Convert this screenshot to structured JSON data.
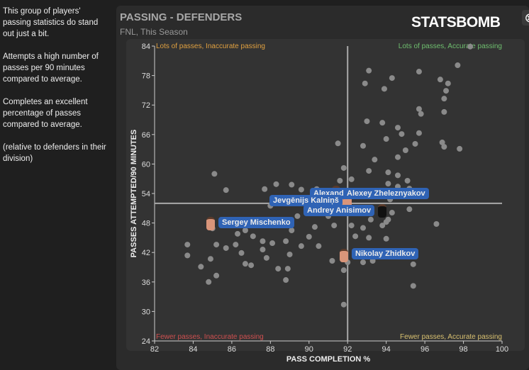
{
  "sidebar": {
    "paragraphs": [
      "This group of players' passing statistics do stand out just a bit.",
      "Attempts a high number of passes per 90 minutes compared to average.",
      "Completes an excellent percentage of passes compared to average.",
      "(relative to defenders in their division)"
    ]
  },
  "header": {
    "title": "PASSING - DEFENDERS",
    "subtitle": "FNL, This Season",
    "logo": "STATSBOMB",
    "close_icon": "close-icon"
  },
  "chart_data": {
    "type": "scatter",
    "xlabel": "PASS COMPLETION %",
    "ylabel": "PASSES ATTEMPTED/90 MINUTES",
    "xlim": [
      82,
      100
    ],
    "ylim": [
      24,
      84
    ],
    "xticks": [
      82,
      84,
      86,
      88,
      90,
      92,
      94,
      96,
      98,
      100
    ],
    "yticks": [
      24,
      30,
      36,
      42,
      48,
      54,
      60,
      66,
      72,
      78,
      84
    ],
    "x_avg": 92,
    "y_avg": 52,
    "quadrants": {
      "tl": "Lots of passes, Inaccurate passing",
      "tr": "Lots of passes, Accurate passing",
      "bl": "Fewer passes, Inaccurate passing",
      "br": "Fewer passes, Accurate passing"
    },
    "colors": {
      "tl": "#e0a040",
      "tr": "#6fbf6f",
      "bl": "#d05050",
      "br": "#d8c070",
      "point": "#8a8a8a",
      "label": "#2f63b5"
    },
    "points": [
      [
        98.35,
        83.9
      ],
      [
        97.7,
        80.1
      ],
      [
        93.1,
        79
      ],
      [
        95.7,
        78.8
      ],
      [
        96.8,
        77.2
      ],
      [
        97.2,
        76.4
      ],
      [
        94.3,
        77.5
      ],
      [
        92.9,
        76.4
      ],
      [
        93.9,
        75.3
      ],
      [
        97.1,
        74.9
      ],
      [
        97.0,
        73.3
      ],
      [
        95.7,
        71.2
      ],
      [
        97.0,
        70.6
      ],
      [
        95.8,
        70.2
      ],
      [
        93.0,
        68.7
      ],
      [
        93.8,
        68.4
      ],
      [
        94.6,
        67.4
      ],
      [
        94.8,
        66.1
      ],
      [
        95.7,
        66.3
      ],
      [
        94.0,
        65.1
      ],
      [
        91.5,
        64.2
      ],
      [
        92.8,
        63.7
      ],
      [
        96.9,
        64.4
      ],
      [
        97.0,
        63.5
      ],
      [
        95.5,
        64.1
      ],
      [
        97.8,
        63.1
      ],
      [
        95.0,
        62.8
      ],
      [
        93.4,
        60.9
      ],
      [
        94.6,
        61.4
      ],
      [
        91.8,
        59.2
      ],
      [
        93.1,
        58.6
      ],
      [
        94.1,
        58.3
      ],
      [
        94.6,
        57.7
      ],
      [
        85.1,
        58
      ],
      [
        85.7,
        54.7
      ],
      [
        87.7,
        54.9
      ],
      [
        88.3,
        55.9
      ],
      [
        89.1,
        55.8
      ],
      [
        91.6,
        56.6
      ],
      [
        92.2,
        56.9
      ],
      [
        90.4,
        54.9
      ],
      [
        89.6,
        54.8
      ],
      [
        95.1,
        56.6
      ],
      [
        95.2,
        55
      ],
      [
        94.1,
        56
      ],
      [
        94.6,
        55.4
      ],
      [
        94.2,
        52.8
      ],
      [
        95.2,
        50.8
      ],
      [
        94.3,
        50.1
      ],
      [
        94.1,
        48.7
      ],
      [
        93.8,
        47.5
      ],
      [
        94.0,
        48.2
      ],
      [
        93.2,
        48.7
      ],
      [
        92.8,
        47
      ],
      [
        92.2,
        47.5
      ],
      [
        92.4,
        45.3
      ],
      [
        93.1,
        45
      ],
      [
        94.0,
        44.8
      ],
      [
        92.0,
        40
      ],
      [
        92.8,
        40
      ],
      [
        93.3,
        40.3
      ],
      [
        95.4,
        39.6
      ],
      [
        95.4,
        35.2
      ],
      [
        96.6,
        47.8
      ],
      [
        91.8,
        31.4
      ],
      [
        91.8,
        38.4
      ],
      [
        91.2,
        40.3
      ],
      [
        90.5,
        43.3
      ],
      [
        90,
        45.2
      ],
      [
        90.3,
        47.2
      ],
      [
        91.3,
        47.5
      ],
      [
        91,
        49.4
      ],
      [
        89.4,
        49.4
      ],
      [
        89.1,
        46.5
      ],
      [
        88.8,
        44.3
      ],
      [
        88.1,
        43.9
      ],
      [
        87.6,
        44.3
      ],
      [
        87.1,
        45.3
      ],
      [
        86.7,
        46.5
      ],
      [
        86.3,
        45.8
      ],
      [
        86.2,
        43.6
      ],
      [
        85.7,
        42.9
      ],
      [
        85.2,
        43.6
      ],
      [
        85,
        46.9
      ],
      [
        84.9,
        40.7
      ],
      [
        86.7,
        39.7
      ],
      [
        87,
        39.4
      ],
      [
        86.5,
        41.9
      ],
      [
        87.6,
        42.6
      ],
      [
        87.8,
        40.9
      ],
      [
        88.4,
        38.7
      ],
      [
        88.8,
        36.4
      ],
      [
        88.9,
        38.7
      ],
      [
        89,
        41.6
      ],
      [
        89.6,
        43.3
      ],
      [
        83.7,
        41.4
      ],
      [
        83.7,
        43.6
      ],
      [
        84.4,
        39.1
      ],
      [
        84.8,
        36
      ],
      [
        85.2,
        37.3
      ],
      [
        88,
        51.5
      ]
    ],
    "highlighted": [
      {
        "name": "Sergey Mischenko",
        "x": 84.9,
        "y": 48.1
      },
      {
        "name": "Alexander",
        "x": 91.4,
        "y": 54.4
      },
      {
        "name": "Alexey Zheleznyakov",
        "x": 92.0,
        "y": 52.6
      },
      {
        "name": "Jevgēnijs Kalniņš",
        "x": 91.6,
        "y": 52.3
      },
      {
        "name": "Andrey Anisimov",
        "x": 93.8,
        "y": 50.7
      },
      {
        "name": "Nikolay Zhidkov",
        "x": 91.8,
        "y": 41.6
      }
    ]
  }
}
